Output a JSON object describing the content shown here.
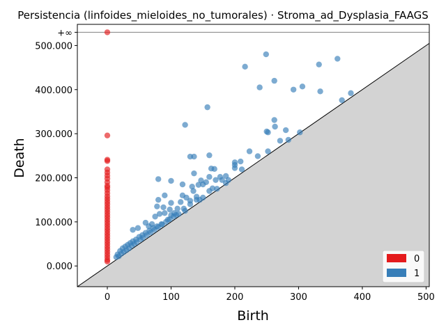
{
  "chart_data": {
    "type": "scatter",
    "title": "Persistencia (linfoides_mieloides_no_tumorales) · Stroma_ad_Dysplasia_FAAGS",
    "xlabel": "Birth",
    "ylabel": "Death",
    "xlim": [
      -47,
      505
    ],
    "ylim": [
      -47,
      548
    ],
    "x_ticks": [
      0,
      100,
      200,
      300,
      400,
      500
    ],
    "y_ticks": [
      0,
      100,
      200,
      300,
      400,
      500
    ],
    "x_tick_labels": [
      "0",
      "100",
      "200",
      "300",
      "400",
      "500"
    ],
    "y_tick_labels": [
      "0.000",
      "100.000",
      "200.000",
      "300.000",
      "400.000",
      "500.000"
    ],
    "infinity_label": "+∞",
    "infinity_value": 530,
    "diagonal": true,
    "legend_position": "lower-right",
    "series": [
      {
        "name": "0",
        "color": "#e41a1c",
        "points": [
          [
            0,
            530
          ],
          [
            0,
            296
          ],
          [
            0,
            241
          ],
          [
            0,
            238
          ],
          [
            0,
            219
          ],
          [
            0,
            212
          ],
          [
            0,
            205
          ],
          [
            0,
            198
          ],
          [
            0,
            190
          ],
          [
            0,
            182
          ],
          [
            0,
            178
          ],
          [
            0,
            172
          ],
          [
            0,
            165
          ],
          [
            0,
            158
          ],
          [
            0,
            152
          ],
          [
            0,
            146
          ],
          [
            0,
            140
          ],
          [
            0,
            134
          ],
          [
            0,
            128
          ],
          [
            0,
            122
          ],
          [
            0,
            116
          ],
          [
            0,
            110
          ],
          [
            0,
            104
          ],
          [
            0,
            98
          ],
          [
            0,
            92
          ],
          [
            0,
            86
          ],
          [
            0,
            80
          ],
          [
            0,
            74
          ],
          [
            0,
            68
          ],
          [
            0,
            62
          ],
          [
            0,
            56
          ],
          [
            0,
            50
          ],
          [
            0,
            44
          ],
          [
            0,
            38
          ],
          [
            0,
            32
          ],
          [
            0,
            26
          ],
          [
            0,
            20
          ],
          [
            0,
            14
          ],
          [
            0,
            10
          ]
        ]
      },
      {
        "name": "1",
        "color": "#377eb8",
        "points": [
          [
            249,
            480
          ],
          [
            361,
            470
          ],
          [
            332,
            457
          ],
          [
            216,
            452
          ],
          [
            262,
            420
          ],
          [
            239,
            405
          ],
          [
            306,
            407
          ],
          [
            292,
            400
          ],
          [
            334,
            396
          ],
          [
            382,
            392
          ],
          [
            368,
            376
          ],
          [
            157,
            360
          ],
          [
            262,
            331
          ],
          [
            122,
            320
          ],
          [
            263,
            316
          ],
          [
            280,
            308
          ],
          [
            250,
            305
          ],
          [
            252,
            303
          ],
          [
            302,
            303
          ],
          [
            271,
            284
          ],
          [
            284,
            286
          ],
          [
            223,
            260
          ],
          [
            252,
            260
          ],
          [
            236,
            249
          ],
          [
            130,
            248
          ],
          [
            136,
            248
          ],
          [
            160,
            251
          ],
          [
            209,
            237
          ],
          [
            200,
            235
          ],
          [
            200,
            229
          ],
          [
            200,
            222
          ],
          [
            211,
            219
          ],
          [
            168,
            220
          ],
          [
            163,
            221
          ],
          [
            136,
            210
          ],
          [
            80,
            197
          ],
          [
            100,
            193
          ],
          [
            118,
            185
          ],
          [
            147,
            194
          ],
          [
            155,
            190
          ],
          [
            186,
            204
          ],
          [
            177,
            202
          ],
          [
            180,
            195
          ],
          [
            160,
            202
          ],
          [
            170,
            195
          ],
          [
            150,
            185
          ],
          [
            133,
            180
          ],
          [
            143,
            184
          ],
          [
            165,
            176
          ],
          [
            186,
            188
          ],
          [
            190,
            195
          ],
          [
            160,
            170
          ],
          [
            172,
            175
          ],
          [
            135,
            170
          ],
          [
            118,
            160
          ],
          [
            124,
            155
          ],
          [
            150,
            155
          ],
          [
            140,
            150
          ],
          [
            130,
            148
          ],
          [
            115,
            145
          ],
          [
            100,
            143
          ],
          [
            90,
            160
          ],
          [
            80,
            150
          ],
          [
            78,
            135
          ],
          [
            88,
            133
          ],
          [
            98,
            128
          ],
          [
            110,
            130
          ],
          [
            122,
            125
          ],
          [
            48,
            86
          ],
          [
            40,
            82
          ],
          [
            60,
            98
          ],
          [
            65,
            90
          ],
          [
            70,
            95
          ],
          [
            75,
            112
          ],
          [
            82,
            118
          ],
          [
            90,
            120
          ],
          [
            100,
            115
          ],
          [
            105,
            120
          ],
          [
            112,
            118
          ],
          [
            120,
            130
          ],
          [
            130,
            140
          ],
          [
            140,
            157
          ],
          [
            145,
            150
          ],
          [
            95,
            105
          ],
          [
            85,
            95
          ],
          [
            78,
            90
          ],
          [
            72,
            86
          ],
          [
            66,
            80
          ],
          [
            60,
            75
          ],
          [
            55,
            70
          ],
          [
            50,
            66
          ],
          [
            45,
            60
          ],
          [
            40,
            56
          ],
          [
            36,
            52
          ],
          [
            32,
            48
          ],
          [
            28,
            44
          ],
          [
            24,
            40
          ],
          [
            20,
            34
          ],
          [
            16,
            26
          ],
          [
            14,
            20
          ],
          [
            18,
            22
          ],
          [
            22,
            28
          ],
          [
            26,
            32
          ],
          [
            30,
            36
          ],
          [
            34,
            40
          ],
          [
            38,
            46
          ],
          [
            42,
            50
          ],
          [
            46,
            54
          ],
          [
            52,
            60
          ],
          [
            56,
            64
          ],
          [
            62,
            70
          ],
          [
            68,
            76
          ],
          [
            74,
            82
          ],
          [
            80,
            88
          ],
          [
            86,
            94
          ],
          [
            92,
            100
          ],
          [
            98,
            106
          ],
          [
            104,
            112
          ],
          [
            108,
            116
          ]
        ]
      }
    ]
  }
}
